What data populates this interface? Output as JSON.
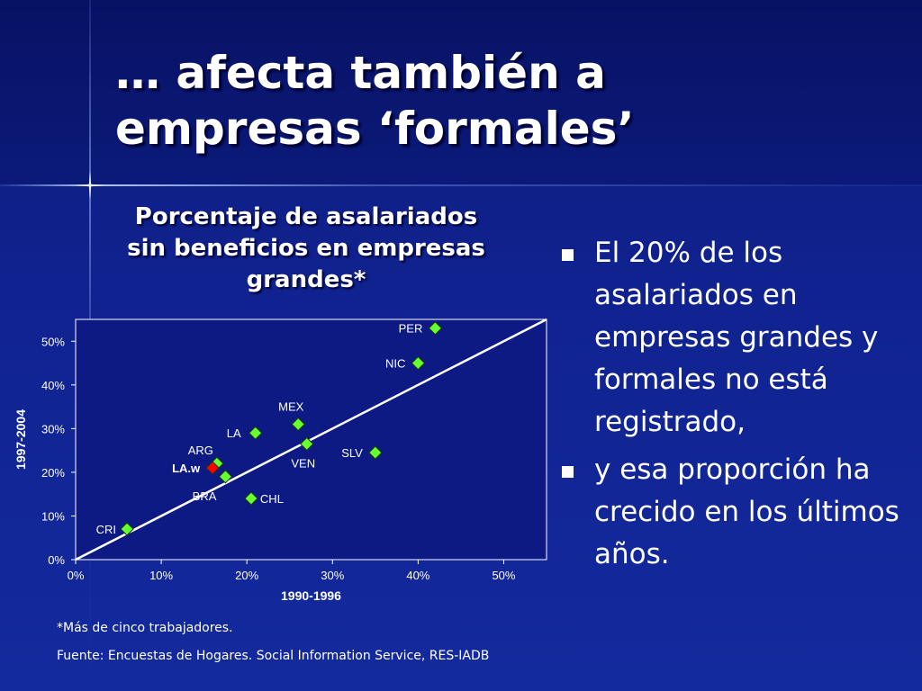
{
  "slide": {
    "title_lines": [
      "… afecta también a",
      "empresas ‘formales’"
    ],
    "chart_title_lines": [
      "Porcentaje de asalariados",
      "sin beneficios en empresas",
      "grandes*"
    ],
    "bullets": [
      "El 20% de los asalariados en empresas grandes y formales no está registrado,",
      "y esa proporción ha crecido en los últimos años."
    ],
    "footnote": "*Más  de cinco trabajadores.",
    "source": "Fuente: Encuestas de Hogares. Social Information Service, RES-IADB",
    "colors": {
      "background": "#10228f",
      "marker": "#66ff33",
      "highlight_marker": "#ff0000",
      "plot_background": "#0d1a84"
    }
  },
  "chart_data": {
    "type": "scatter",
    "xlabel": "1990-1996",
    "ylabel": "1997-2004",
    "xlim": [
      0,
      55
    ],
    "ylim": [
      0,
      55
    ],
    "xticks": [
      "0%",
      "10%",
      "20%",
      "30%",
      "40%",
      "50%"
    ],
    "yticks": [
      "0%",
      "10%",
      "20%",
      "30%",
      "40%",
      "50%"
    ],
    "grid": false,
    "legend": "none",
    "reference_line": {
      "from": [
        0,
        0
      ],
      "to": [
        55,
        55
      ]
    },
    "points": [
      {
        "label": "CRI",
        "x": 6,
        "y": 7
      },
      {
        "label": "ARG",
        "x": 16.5,
        "y": 22
      },
      {
        "label": "LA.w",
        "x": 16,
        "y": 21,
        "highlight": true
      },
      {
        "label": "BRA",
        "x": 17.5,
        "y": 19
      },
      {
        "label": "LA",
        "x": 21,
        "y": 29
      },
      {
        "label": "CHL",
        "x": 20.5,
        "y": 14
      },
      {
        "label": "MEX",
        "x": 26,
        "y": 31
      },
      {
        "label": "VEN",
        "x": 27,
        "y": 26.5
      },
      {
        "label": "SLV",
        "x": 35,
        "y": 24.5
      },
      {
        "label": "NIC",
        "x": 40,
        "y": 45
      },
      {
        "label": "PER",
        "x": 42,
        "y": 53
      }
    ]
  }
}
